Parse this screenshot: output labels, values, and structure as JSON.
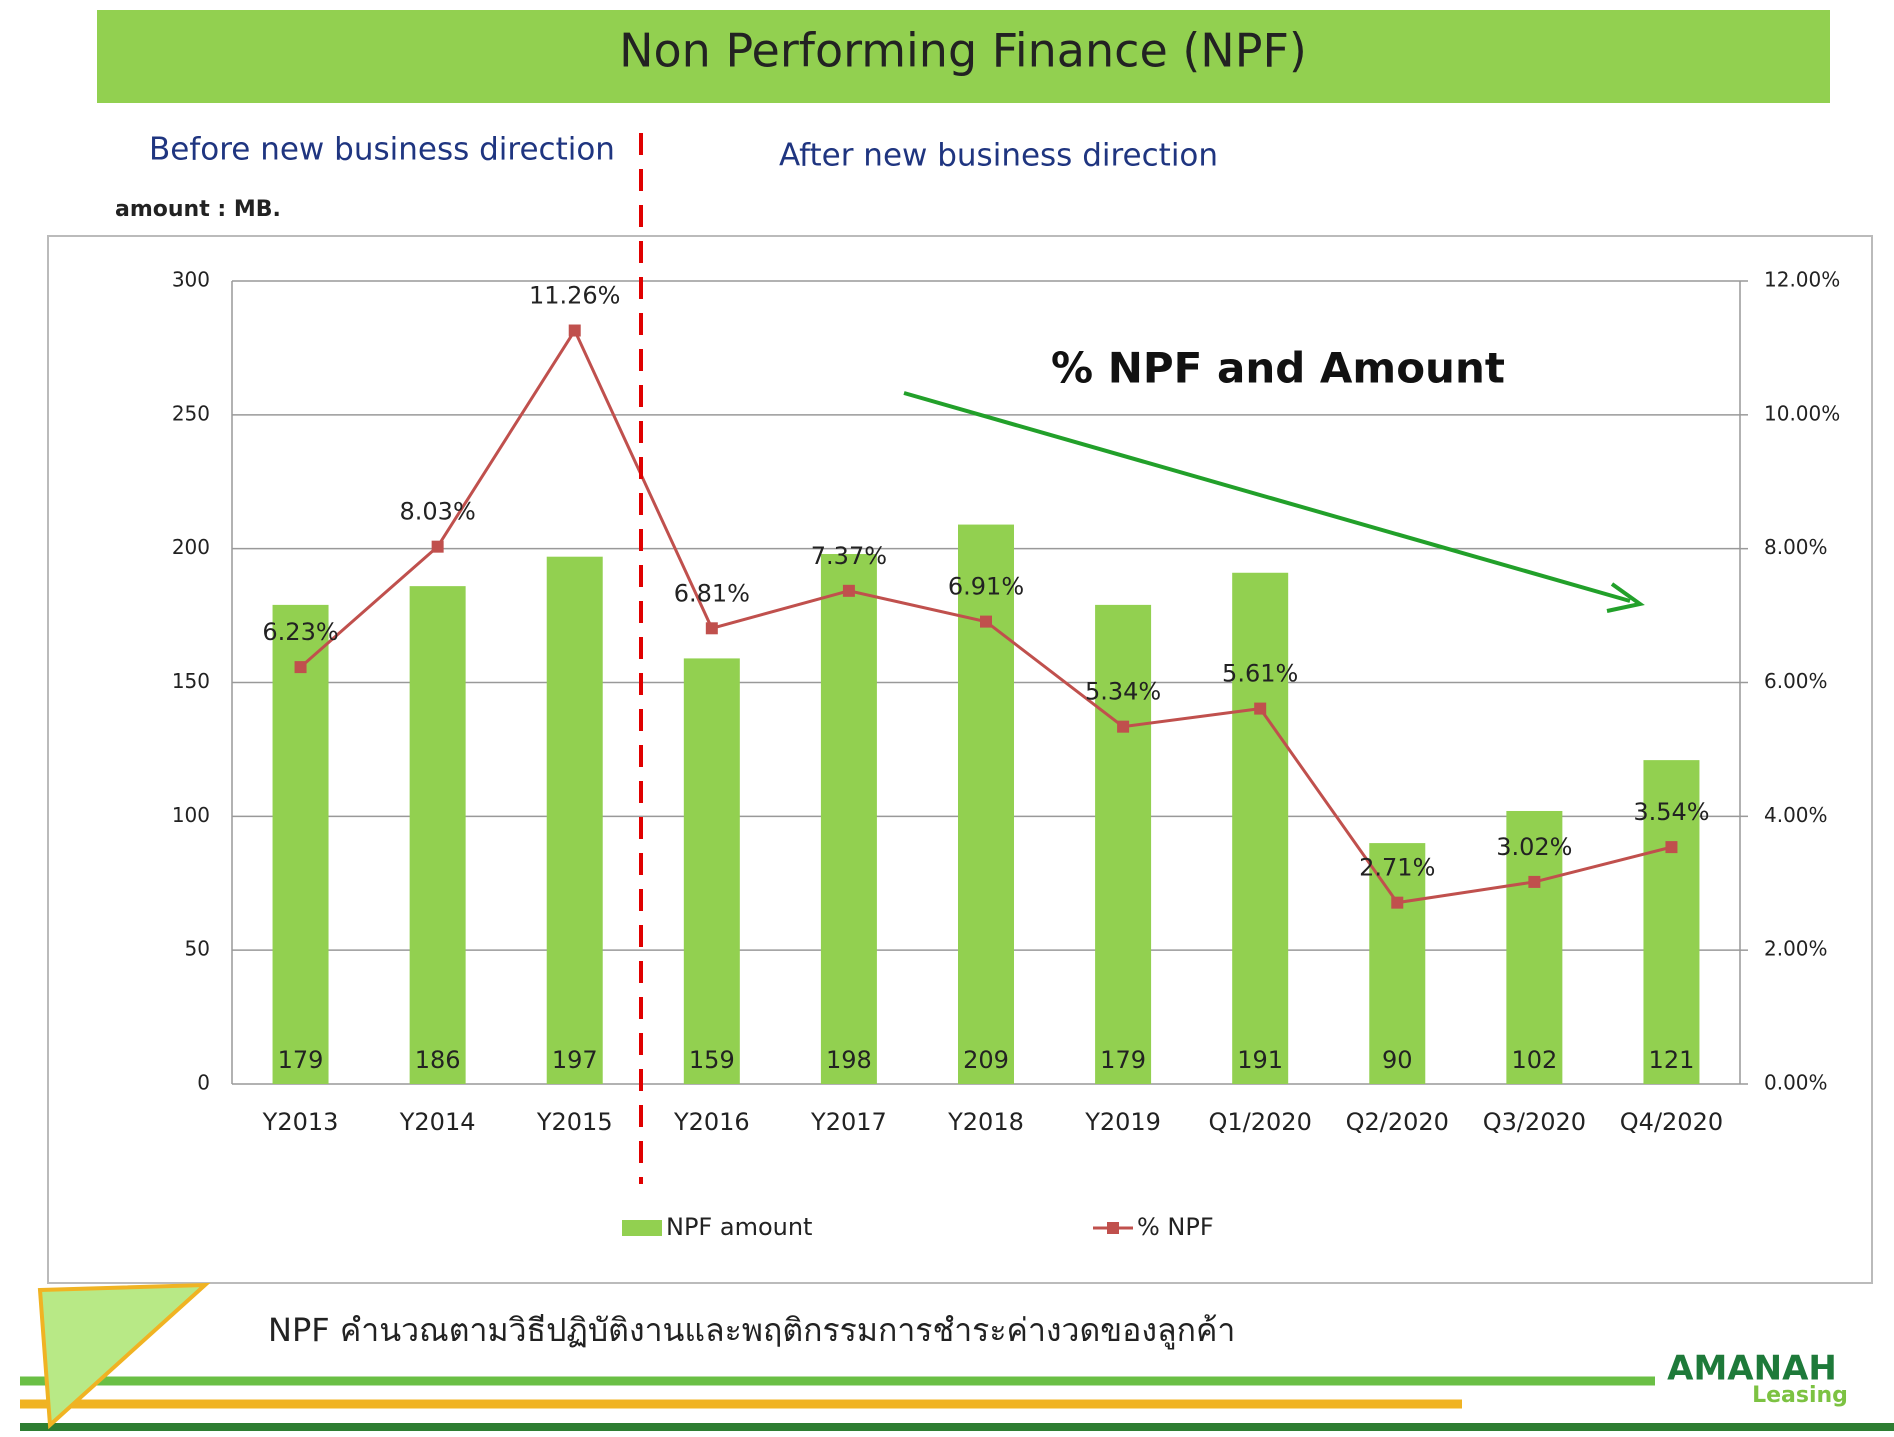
{
  "header": {
    "title": "Non Performing Finance (NPF)"
  },
  "labels": {
    "before": "Before new business direction",
    "after": "After new business direction",
    "unit": "amount : MB."
  },
  "chart_data": {
    "type": "bar",
    "annotation": "% NPF and Amount",
    "categories": [
      "Y2013",
      "Y2014",
      "Y2015",
      "Y2016",
      "Y2017",
      "Y2018",
      "Y2019",
      "Q1/2020",
      "Q2/2020",
      "Q3/2020",
      "Q4/2020"
    ],
    "series": [
      {
        "name": "NPF amount",
        "type": "bar",
        "color": "#92d050",
        "values": [
          179,
          186,
          197,
          159,
          198,
          209,
          179,
          191,
          90,
          102,
          121
        ]
      },
      {
        "name": "% NPF",
        "type": "line",
        "axis": "y2",
        "color": "#c0504d",
        "values": [
          6.23,
          8.03,
          11.26,
          6.81,
          7.37,
          6.91,
          5.34,
          5.61,
          2.71,
          3.02,
          3.54
        ],
        "value_labels": [
          "6.23%",
          "8.03%",
          "11.26%",
          "6.81%",
          "7.37%",
          "6.91%",
          "5.34%",
          "5.61%",
          "2.71%",
          "3.02%",
          "3.54%"
        ]
      }
    ],
    "ylim": [
      0,
      300
    ],
    "yticks": [
      0,
      50,
      100,
      150,
      200,
      250,
      300
    ],
    "y2lim": [
      0,
      12
    ],
    "y2ticks": [
      {
        "value": 0,
        "label": "0.00%"
      },
      {
        "value": 2,
        "label": "2.00%"
      },
      {
        "value": 4,
        "label": "4.00%"
      },
      {
        "value": 6,
        "label": "6.00%"
      },
      {
        "value": 8,
        "label": "8.00%"
      },
      {
        "value": 10,
        "label": "10.00%"
      },
      {
        "value": 12,
        "label": "12.00%"
      }
    ],
    "grid": true,
    "legend": "bottom"
  },
  "footer": {
    "note": "NPF คำนวณตามวิธีปฏิบัติงานและพฤติกรรมการชำระค่างวดของลูกค้า",
    "logo": "AMANAH",
    "logo_sub": "Leasing"
  }
}
